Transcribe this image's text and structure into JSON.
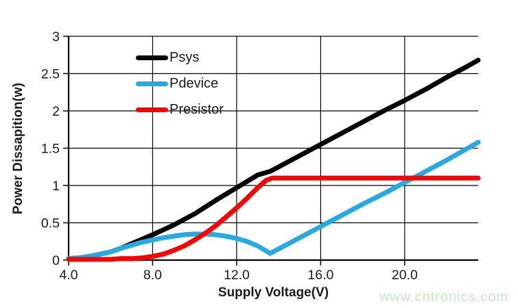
{
  "watermark": {
    "text": "www.cntronics.com",
    "color": "#c3e7c3"
  },
  "chart_data": {
    "type": "line",
    "title": "",
    "xlabel": "Supply Voltage(V)",
    "ylabel": "Power Dissapition(w)",
    "xlim": [
      4,
      23.5
    ],
    "ylim": [
      0,
      3
    ],
    "grid": true,
    "legend_position": "inside-upper-left",
    "xtick_values": [
      4,
      8,
      12,
      16,
      20
    ],
    "xtick_labels": [
      "4.0",
      "8.0",
      "12.0",
      "16.0",
      "20.0"
    ],
    "ytick_values": [
      0,
      0.5,
      1,
      1.5,
      2,
      2.5,
      3
    ],
    "ytick_labels": [
      "0",
      "0.5",
      "1",
      "1.5",
      "2",
      "2.5",
      "3"
    ],
    "axis_color": "#000000",
    "grid_color": "#000000",
    "series": [
      {
        "name": "Psys",
        "color": "#000000",
        "x": [
          4,
          4.5,
          5,
          5.5,
          6,
          6.5,
          7,
          7.5,
          8,
          9,
          10,
          11,
          12,
          13,
          13.6,
          14,
          15,
          16,
          17,
          18,
          19,
          20,
          21,
          22,
          23,
          23.5
        ],
        "y": [
          0.02,
          0.03,
          0.05,
          0.08,
          0.11,
          0.16,
          0.22,
          0.28,
          0.34,
          0.47,
          0.62,
          0.8,
          0.97,
          1.14,
          1.19,
          1.25,
          1.4,
          1.55,
          1.7,
          1.85,
          2.0,
          2.14,
          2.29,
          2.45,
          2.6,
          2.68
        ]
      },
      {
        "name": "Pdevice",
        "color": "#27AAE1",
        "x": [
          4,
          4.5,
          5,
          5.5,
          6,
          6.5,
          7,
          7.5,
          8,
          8.5,
          9,
          9.5,
          10,
          10.5,
          11,
          11.5,
          12,
          12.5,
          13,
          13.6,
          14,
          15,
          16,
          17,
          18,
          19,
          20,
          21,
          22,
          23,
          23.5
        ],
        "y": [
          0.02,
          0.03,
          0.05,
          0.08,
          0.11,
          0.16,
          0.2,
          0.24,
          0.27,
          0.3,
          0.32,
          0.34,
          0.35,
          0.35,
          0.34,
          0.32,
          0.29,
          0.25,
          0.19,
          0.09,
          0.15,
          0.3,
          0.45,
          0.6,
          0.75,
          0.89,
          1.04,
          1.19,
          1.34,
          1.5,
          1.58
        ]
      },
      {
        "name": "Presistor",
        "color": "#FF0000",
        "x": [
          4,
          5,
          6,
          6.5,
          7,
          7.5,
          8,
          8.5,
          9,
          9.5,
          10,
          10.5,
          11,
          11.5,
          12,
          12.5,
          13,
          13.4,
          13.7,
          14,
          16,
          18,
          20,
          22,
          23.5
        ],
        "y": [
          0.01,
          0.01,
          0.01,
          0.02,
          0.02,
          0.03,
          0.05,
          0.08,
          0.13,
          0.19,
          0.27,
          0.36,
          0.46,
          0.58,
          0.7,
          0.83,
          0.97,
          1.07,
          1.1,
          1.1,
          1.1,
          1.1,
          1.1,
          1.1,
          1.1
        ]
      }
    ]
  }
}
